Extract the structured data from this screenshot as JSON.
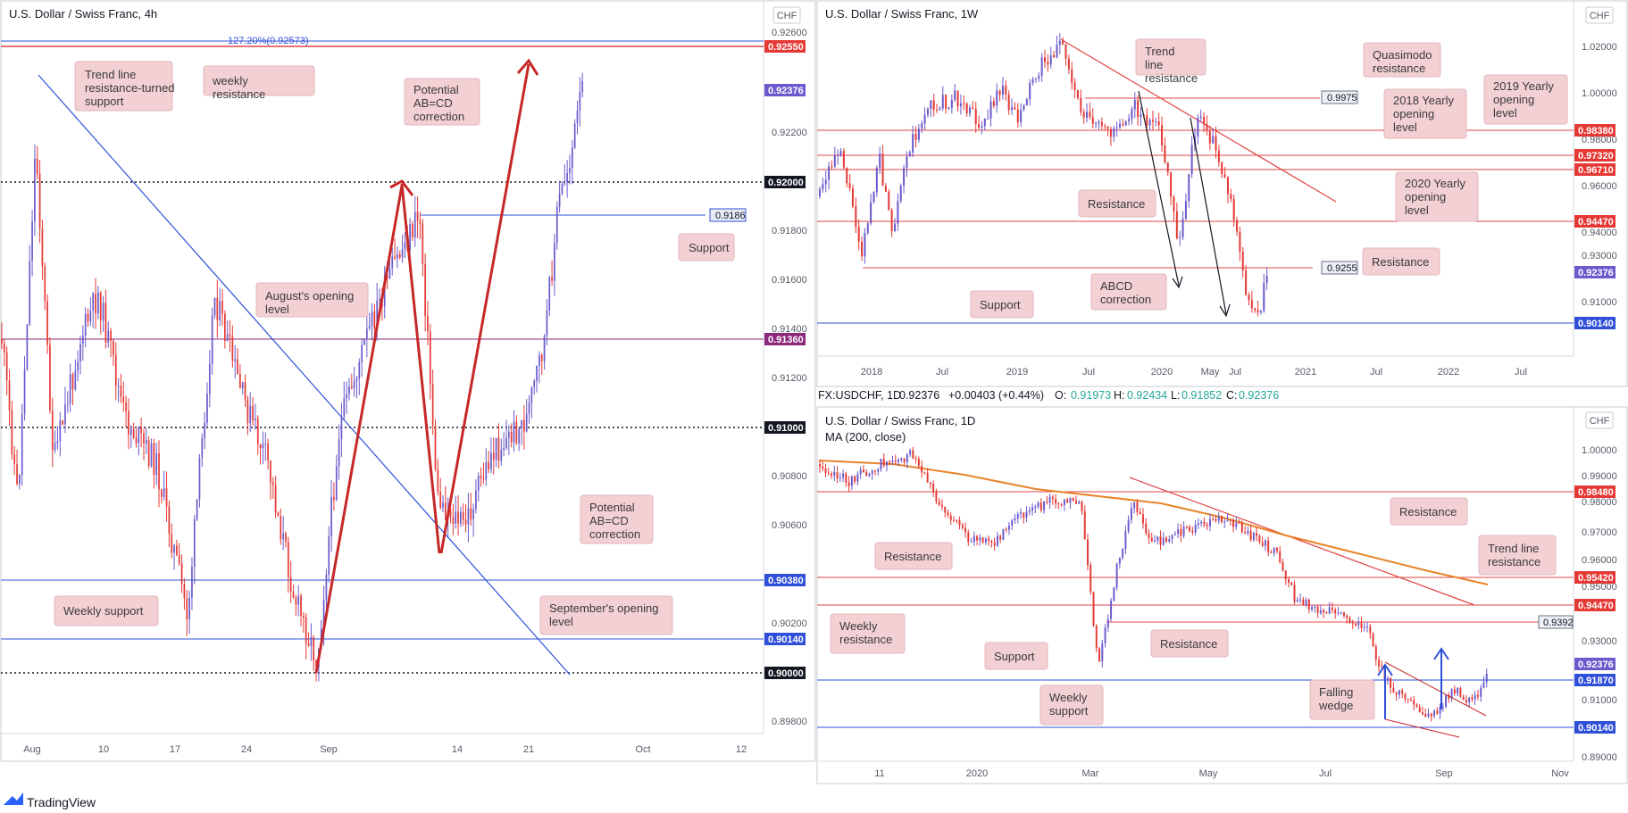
{
  "branding": {
    "logo_text": "TradingView"
  },
  "colors": {
    "bull": "#6a5acd",
    "bear": "#e53935",
    "support_line": "#2f4fd8",
    "resistance_line": "#e04545",
    "callout_fill": "#f2d0d4",
    "ma": "#e8832a",
    "arrow": "#c62828"
  },
  "charts": [
    {
      "id": "h4",
      "title": "U.S. Dollar / Swiss Franc, 4h",
      "currency_badge": "CHF",
      "y_ticks": [
        "0.92600",
        "0.92200",
        "0.91800",
        "0.91600",
        "0.91400",
        "0.91200",
        "0.90800",
        "0.90600",
        "0.90200",
        "0.89800"
      ],
      "x_ticks": [
        "Aug",
        "10",
        "17",
        "24",
        "Sep",
        "14",
        "21",
        "Oct",
        "12"
      ],
      "fib_label": "127.20%(0.92573)",
      "price_tags": [
        "0.92550",
        "0.92376",
        "0.92000",
        "0.91360",
        "0.91000",
        "0.90380",
        "0.90140",
        "0.90000"
      ],
      "box_tag": "0.9186",
      "callouts": [
        "Trend line resistance-turned support",
        "weekly resistance",
        "Potential AB=CD correction",
        "Support",
        "August's opening level",
        "Potential AB=CD correction",
        "September's opening level",
        "Weekly support"
      ]
    },
    {
      "id": "w1",
      "title": "U.S. Dollar / Swiss Franc, 1W",
      "currency_badge": "CHF",
      "y_ticks": [
        "1.02000",
        "1.00000",
        "0.98000",
        "0.96000",
        "0.94000",
        "0.93000",
        "0.91000"
      ],
      "x_ticks": [
        "2018",
        "Jul",
        "2019",
        "Jul",
        "2020",
        "May",
        "Jul",
        "2021",
        "Jul",
        "2022",
        "Jul"
      ],
      "price_tags": [
        "0.98380",
        "0.97320",
        "0.96710",
        "0.94470",
        "0.92376",
        "0.90140"
      ],
      "box_tags": [
        "0.9975",
        "0.9255"
      ],
      "callouts": [
        "Trend line resistance",
        "Quasimodo resistance",
        "2019 Yearly opening level",
        "2018 Yearly opening level",
        "2020 Yearly opening level",
        "Resistance",
        "Resistance",
        "ABCD correction",
        "Support"
      ]
    },
    {
      "id": "d1",
      "title": "U.S. Dollar / Swiss Franc, 1D",
      "ma_label": "MA (200, close)",
      "currency_badge": "CHF",
      "y_ticks": [
        "1.00000",
        "0.99000",
        "0.98000",
        "0.97000",
        "0.96000",
        "0.95000",
        "0.93000",
        "0.91000",
        "0.89000"
      ],
      "x_ticks": [
        "11",
        "2020",
        "Mar",
        "May",
        "Jul",
        "Sep",
        "Nov"
      ],
      "price_tags": [
        "0.98480",
        "0.95420",
        "0.94470",
        "0.92376",
        "0.91870",
        "0.90140"
      ],
      "box_tag": "0.9392",
      "callouts": [
        "Resistance",
        "Resistance",
        "Trend line resistance",
        "Weekly resistance",
        "Resistance",
        "Support",
        "Weekly support",
        "Falling wedge"
      ]
    }
  ],
  "symbol_info": {
    "symbol": "FX:USDCHF, 1D",
    "last": "0.92376",
    "change": "+0.00403 (+0.44%)",
    "open_label": "O:",
    "open": "0.91973",
    "high_label": "H:",
    "high": "0.92434",
    "low_label": "L:",
    "low": "0.91852",
    "close_label": "C:",
    "close": "0.92376"
  },
  "chart_data": [
    {
      "type": "candlestick",
      "title": "U.S. Dollar / Swiss Franc, 4h",
      "x": [
        "2020-08-03",
        "2020-08-10",
        "2020-08-17",
        "2020-08-24",
        "2020-09-01",
        "2020-09-14",
        "2020-09-21"
      ],
      "close": [
        0.912,
        0.917,
        0.903,
        0.9105,
        0.901,
        0.906,
        0.9237
      ],
      "ylim": [
        0.897,
        0.9265
      ],
      "levels": [
        0.9255,
        0.92,
        0.9186,
        0.9136,
        0.91,
        0.9038,
        0.9014,
        0.9
      ]
    },
    {
      "type": "candlestick",
      "title": "U.S. Dollar / Swiss Franc, 1W",
      "x": [
        "2018",
        "2018-07",
        "2019",
        "2019-07",
        "2020",
        "2020-05",
        "2020-07"
      ],
      "close": [
        0.945,
        0.992,
        0.983,
        0.988,
        0.971,
        0.962,
        0.9238
      ],
      "ylim": [
        0.893,
        1.03
      ],
      "levels": [
        0.9975,
        0.9838,
        0.9732,
        0.9671,
        0.9447,
        0.9255,
        0.9014
      ]
    },
    {
      "type": "candlestick",
      "title": "U.S. Dollar / Swiss Franc, 1D",
      "x": [
        "2019-11",
        "2020-01",
        "2020-03",
        "2020-05",
        "2020-07",
        "2020-09"
      ],
      "close": [
        0.995,
        0.97,
        0.965,
        0.962,
        0.92,
        0.9238
      ],
      "ma200_close": [
        0.992,
        0.988,
        0.978,
        0.97,
        0.96,
        0.953
      ],
      "ylim": [
        0.888,
        1.005
      ],
      "levels": [
        0.9848,
        0.9542,
        0.9447,
        0.9392,
        0.9187,
        0.9014
      ]
    }
  ]
}
